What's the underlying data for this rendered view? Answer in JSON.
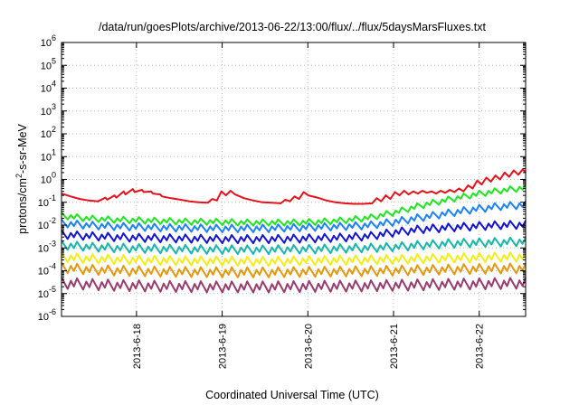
{
  "chart_data": {
    "type": "line",
    "title": "/data/run/goesPlots/archive/2013-06-22/13:00/flux/../flux/5daysMarsFluxes.txt",
    "xlabel": "Coordinated Universal Time (UTC)",
    "ylabel": "protons/cm²-s-sr-MeV",
    "ylabel_parts": {
      "pre": "protons/cm",
      "sup": "2",
      "post": "-s-sr-MeV"
    },
    "yscale": "log",
    "ylim": [
      1e-06,
      1000000.0
    ],
    "y_ticks": [
      {
        "base": "10",
        "exp": "-6"
      },
      {
        "base": "10",
        "exp": "-5"
      },
      {
        "base": "10",
        "exp": "-4"
      },
      {
        "base": "10",
        "exp": "-3"
      },
      {
        "base": "10",
        "exp": "-2"
      },
      {
        "base": "10",
        "exp": "-1"
      },
      {
        "base": "10",
        "exp": "0"
      },
      {
        "base": "10",
        "exp": "1"
      },
      {
        "base": "10",
        "exp": "2"
      },
      {
        "base": "10",
        "exp": "3"
      },
      {
        "base": "10",
        "exp": "4"
      },
      {
        "base": "10",
        "exp": "5"
      },
      {
        "base": "10",
        "exp": "6"
      }
    ],
    "xlim": [
      "2013-06-17T03:00",
      "2013-06-22T13:00"
    ],
    "x_ticks": [
      "2013-6-18",
      "2013-6-19",
      "2013-6-20",
      "2013-6-21",
      "2013-6-22"
    ],
    "grid": true,
    "legend": "none",
    "series": [
      {
        "color": "#e8101a",
        "values": [
          [
            0.0,
            0.24
          ],
          [
            0.1,
            0.18
          ],
          [
            0.2,
            0.14
          ],
          [
            0.3,
            0.12
          ],
          [
            0.4,
            0.11
          ],
          [
            0.48,
            0.16
          ],
          [
            0.5,
            0.13
          ],
          [
            0.58,
            0.2
          ],
          [
            0.6,
            0.16
          ],
          [
            0.68,
            0.3
          ],
          [
            0.7,
            0.22
          ],
          [
            0.78,
            0.38
          ],
          [
            0.8,
            0.28
          ],
          [
            0.88,
            0.35
          ],
          [
            0.9,
            0.28
          ],
          [
            0.98,
            0.3
          ],
          [
            1.0,
            0.24
          ],
          [
            1.08,
            0.22
          ],
          [
            1.1,
            0.18
          ],
          [
            1.2,
            0.15
          ],
          [
            1.3,
            0.13
          ],
          [
            1.4,
            0.11
          ],
          [
            1.5,
            0.1
          ],
          [
            1.6,
            0.095
          ],
          [
            1.65,
            0.14
          ],
          [
            1.7,
            0.12
          ],
          [
            1.75,
            0.3
          ],
          [
            1.8,
            0.2
          ],
          [
            1.85,
            0.32
          ],
          [
            1.9,
            0.22
          ],
          [
            2.0,
            0.15
          ],
          [
            2.1,
            0.12
          ],
          [
            2.2,
            0.1
          ],
          [
            2.3,
            0.095
          ],
          [
            2.4,
            0.09
          ],
          [
            2.45,
            0.13
          ],
          [
            2.5,
            0.11
          ],
          [
            2.55,
            0.18
          ],
          [
            2.6,
            0.14
          ],
          [
            2.65,
            0.28
          ],
          [
            2.7,
            0.2
          ],
          [
            2.8,
            0.16
          ],
          [
            2.9,
            0.12
          ],
          [
            3.0,
            0.1
          ],
          [
            3.1,
            0.09
          ],
          [
            3.2,
            0.085
          ],
          [
            3.3,
            0.085
          ],
          [
            3.4,
            0.09
          ],
          [
            3.45,
            0.15
          ],
          [
            3.5,
            0.11
          ],
          [
            3.55,
            0.2
          ],
          [
            3.6,
            0.14
          ],
          [
            3.65,
            0.28
          ],
          [
            3.7,
            0.2
          ],
          [
            3.75,
            0.32
          ],
          [
            3.8,
            0.22
          ],
          [
            3.85,
            0.3
          ],
          [
            3.9,
            0.24
          ],
          [
            3.95,
            0.32
          ],
          [
            4.0,
            0.26
          ],
          [
            4.05,
            0.3
          ],
          [
            4.1,
            0.24
          ],
          [
            4.15,
            0.32
          ],
          [
            4.2,
            0.26
          ],
          [
            4.25,
            0.35
          ],
          [
            4.3,
            0.28
          ],
          [
            4.35,
            0.4
          ],
          [
            4.4,
            0.3
          ],
          [
            4.45,
            0.55
          ],
          [
            4.5,
            0.4
          ],
          [
            4.55,
            0.9
          ],
          [
            4.6,
            0.6
          ],
          [
            4.65,
            1.2
          ],
          [
            4.7,
            0.8
          ],
          [
            4.75,
            1.5
          ],
          [
            4.8,
            1.0
          ],
          [
            4.85,
            2.0
          ],
          [
            4.9,
            1.3
          ],
          [
            4.95,
            2.5
          ],
          [
            5.0,
            1.6
          ],
          [
            5.05,
            2.8
          ],
          [
            5.08,
            2.0
          ]
        ]
      },
      {
        "color": "#1de81d",
        "base": [
          0.024,
          0.018,
          0.016,
          0.015,
          0.014,
          0.013,
          0.013,
          0.012,
          0.012,
          0.012,
          0.013,
          0.015,
          0.02,
          0.035,
          0.07,
          0.12,
          0.2,
          0.3,
          0.4
        ],
        "amp": 2.2
      },
      {
        "color": "#1a82ff",
        "base": [
          0.011,
          0.009,
          0.008,
          0.0075,
          0.007,
          0.0068,
          0.0065,
          0.0065,
          0.0065,
          0.007,
          0.0075,
          0.008,
          0.009,
          0.013,
          0.02,
          0.03,
          0.045,
          0.06,
          0.07
        ],
        "amp": 2.6
      },
      {
        "color": "#1212d8",
        "base": [
          0.0035,
          0.003,
          0.0027,
          0.0025,
          0.0024,
          0.0023,
          0.0022,
          0.0022,
          0.0022,
          0.0023,
          0.0024,
          0.0026,
          0.003,
          0.0045,
          0.006,
          0.007,
          0.008,
          0.009,
          0.0095
        ],
        "amp": 2.8
      },
      {
        "color": "#14b8aa",
        "base": [
          0.0012,
          0.001,
          0.0009,
          0.00085,
          0.0008,
          0.00078,
          0.00076,
          0.00075,
          0.00075,
          0.00078,
          0.0008,
          0.00085,
          0.0009,
          0.001,
          0.0012,
          0.0014,
          0.0015,
          0.0016,
          0.0017
        ],
        "amp": 3.0
      },
      {
        "color": "#f2ee14",
        "base": [
          0.00035,
          0.0003,
          0.00028,
          0.00026,
          0.00025,
          0.00024,
          0.00024,
          0.00023,
          0.00023,
          0.00024,
          0.00025,
          0.00026,
          0.00027,
          0.00028,
          0.0003,
          0.00032,
          0.00033,
          0.00035,
          0.00036
        ],
        "amp": 3.2
      },
      {
        "color": "#e8960a",
        "base": [
          0.00012,
          0.0001,
          9e-05,
          8.5e-05,
          8e-05,
          7.8e-05,
          7.6e-05,
          7.5e-05,
          7.5e-05,
          7.8e-05,
          8e-05,
          8.2e-05,
          8.5e-05,
          9e-05,
          9.5e-05,
          0.0001,
          0.000105,
          0.00011,
          0.000112
        ],
        "amp": 3.5
      },
      {
        "color": "#9a3a6e",
        "base": [
          2.5e-05,
          2.2e-05,
          2e-05,
          1.9e-05,
          1.8e-05,
          1.75e-05,
          1.7e-05,
          1.7e-05,
          1.7e-05,
          1.75e-05,
          1.8e-05,
          1.85e-05,
          1.9e-05,
          2e-05,
          2.1e-05,
          2.2e-05,
          2.3e-05,
          2.4e-05,
          2.5e-05
        ],
        "amp": 4.0
      }
    ]
  }
}
